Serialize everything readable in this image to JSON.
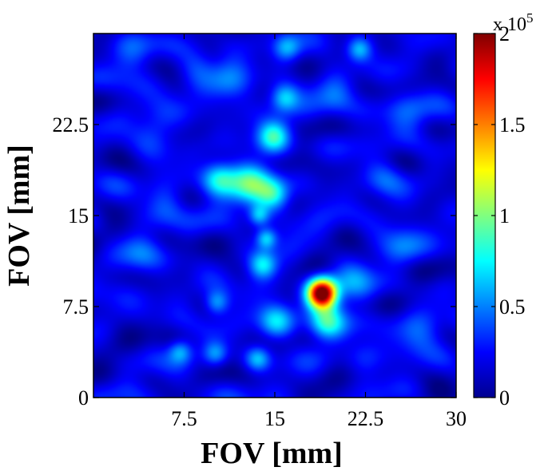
{
  "chart_data": {
    "type": "heatmap",
    "xlabel": "FOV [mm]",
    "ylabel": "FOV [mm]",
    "xlim": [
      0,
      30
    ],
    "ylim": [
      0,
      30
    ],
    "x_ticks": [
      "7.5",
      "15",
      "22.5",
      "30"
    ],
    "y_ticks": [
      "0",
      "7.5",
      "15",
      "22.5"
    ],
    "colorbar": {
      "range": [
        0,
        200000
      ],
      "ticks": [
        "0",
        "0.5",
        "1",
        "1.5",
        "2"
      ],
      "multiplier_base": "x 10",
      "multiplier_exp": "5",
      "colormap": "jet"
    },
    "background_level": 18000,
    "hotspots": [
      {
        "x": 18.9,
        "y": 8.6,
        "sigma": 0.85,
        "value": 200000
      },
      {
        "x": 19.3,
        "y": 6.2,
        "sigma": 1.0,
        "value": 60000
      },
      {
        "x": 13.1,
        "y": 17.6,
        "sigma": 1.3,
        "value": 65000
      },
      {
        "x": 10.4,
        "y": 18.0,
        "sigma": 1.0,
        "value": 60000
      },
      {
        "x": 14.9,
        "y": 16.7,
        "sigma": 0.9,
        "value": 52000
      },
      {
        "x": 14.9,
        "y": 21.5,
        "sigma": 0.9,
        "value": 60000
      },
      {
        "x": 14.0,
        "y": 10.9,
        "sigma": 0.8,
        "value": 55000
      },
      {
        "x": 14.3,
        "y": 13.1,
        "sigma": 0.6,
        "value": 52000
      },
      {
        "x": 13.7,
        "y": 15.0,
        "sigma": 0.6,
        "value": 45000
      },
      {
        "x": 15.1,
        "y": 6.2,
        "sigma": 1.0,
        "value": 50000
      },
      {
        "x": 15.8,
        "y": 24.7,
        "sigma": 0.8,
        "value": 48000
      },
      {
        "x": 16.0,
        "y": 28.8,
        "sigma": 0.8,
        "value": 45000
      },
      {
        "x": 22.0,
        "y": 28.7,
        "sigma": 0.7,
        "value": 45000
      },
      {
        "x": 10.2,
        "y": 7.8,
        "sigma": 0.7,
        "value": 45000
      },
      {
        "x": 7.2,
        "y": 3.8,
        "sigma": 0.7,
        "value": 45000
      },
      {
        "x": 13.6,
        "y": 3.2,
        "sigma": 0.7,
        "value": 42000
      },
      {
        "x": 10.1,
        "y": 3.6,
        "sigma": 0.7,
        "value": 38000
      },
      {
        "x": 21.5,
        "y": 9.4,
        "sigma": 1.2,
        "value": 30000
      },
      {
        "x": 11.5,
        "y": 26.0,
        "sigma": 1.2,
        "value": 30000
      },
      {
        "x": 20.0,
        "y": 25.0,
        "sigma": 1.1,
        "value": 28000
      },
      {
        "x": 5.0,
        "y": 22.0,
        "sigma": 1.2,
        "value": 26000
      },
      {
        "x": 24.0,
        "y": 18.0,
        "sigma": 1.2,
        "value": 25000
      },
      {
        "x": 27.0,
        "y": 5.0,
        "sigma": 1.2,
        "value": 24000
      },
      {
        "x": 4.0,
        "y": 12.0,
        "sigma": 1.2,
        "value": 25000
      },
      {
        "x": 25.5,
        "y": 12.5,
        "sigma": 1.2,
        "value": 24000
      },
      {
        "x": 3.0,
        "y": 28.0,
        "sigma": 1.2,
        "value": 26000
      },
      {
        "x": 26.0,
        "y": 24.0,
        "sigma": 1.2,
        "value": 26000
      },
      {
        "x": 6.0,
        "y": 16.0,
        "sigma": 1.1,
        "value": 22000
      },
      {
        "x": 22.5,
        "y": 3.5,
        "sigma": 1.1,
        "value": 24000
      },
      {
        "x": 8.5,
        "y": 27.5,
        "sigma": 1.1,
        "value": 25000
      }
    ]
  }
}
